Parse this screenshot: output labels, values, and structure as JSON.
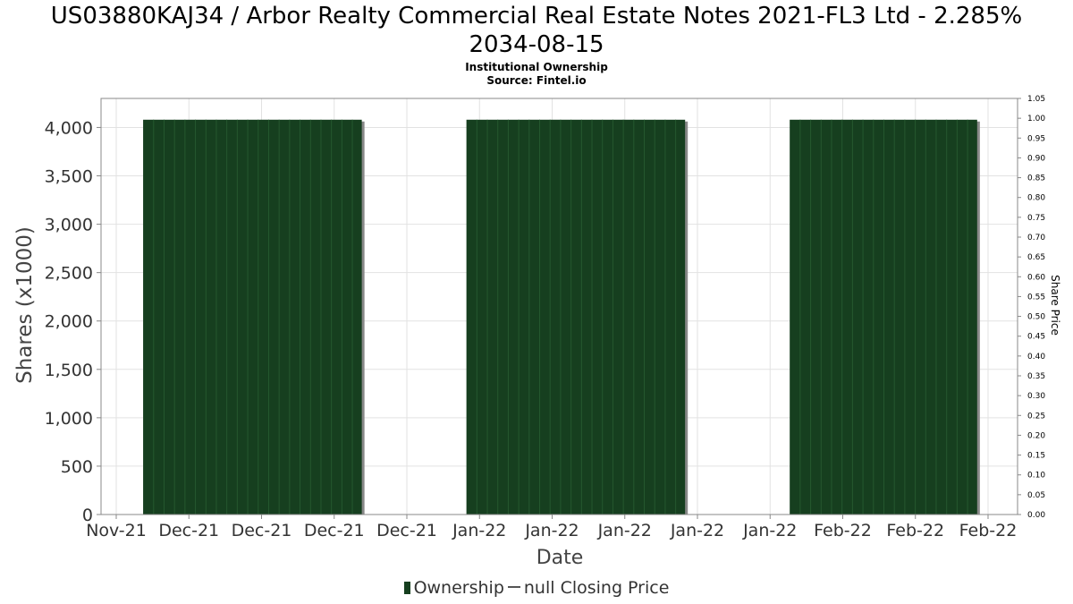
{
  "chart_data": {
    "type": "bar",
    "title_lines": [
      "US03880KAJ34 / Arbor Realty Commercial Real Estate Notes 2021-FL3 Ltd - 2.285%",
      "2034-08-15"
    ],
    "subtitle_lines": [
      "Institutional Ownership",
      "Source: Fintel.io"
    ],
    "xlabel": "Date",
    "ylabel": "Shares (x1000)",
    "y2label": "Share Price",
    "ylim": [
      0,
      4300
    ],
    "y2lim": [
      0,
      1.05
    ],
    "yticks": [
      "0",
      "500",
      "1,000",
      "1,500",
      "2,000",
      "2,500",
      "3,000",
      "3,500",
      "4,000"
    ],
    "ytick_values": [
      0,
      500,
      1000,
      1500,
      2000,
      2500,
      3000,
      3500,
      4000
    ],
    "y2ticks": [
      "0.00",
      "0.05",
      "0.10",
      "0.15",
      "0.20",
      "0.25",
      "0.30",
      "0.35",
      "0.40",
      "0.45",
      "0.50",
      "0.55",
      "0.60",
      "0.65",
      "0.70",
      "0.75",
      "0.80",
      "0.85",
      "0.90",
      "0.95",
      "1.00",
      "1.05"
    ],
    "xticks": [
      "Nov-21",
      "Dec-21",
      "Dec-21",
      "Dec-21",
      "Dec-21",
      "Jan-22",
      "Jan-22",
      "Jan-22",
      "Jan-22",
      "Jan-22",
      "Feb-22",
      "Feb-22",
      "Feb-22"
    ],
    "grid": true,
    "legend_position": "bottom",
    "series": [
      {
        "name": "Ownership",
        "color": "#163f1f",
        "segments": [
          {
            "start_tick": 0.37,
            "end_tick": 3.38,
            "value": 4080
          },
          {
            "start_tick": 4.82,
            "end_tick": 7.83,
            "value": 4080
          },
          {
            "start_tick": 9.27,
            "end_tick": 11.85,
            "value": 4080
          }
        ]
      }
    ],
    "legend": [
      {
        "marker": "bar",
        "label": "Ownership"
      },
      {
        "marker": "line",
        "label": "null Closing Price"
      }
    ]
  }
}
